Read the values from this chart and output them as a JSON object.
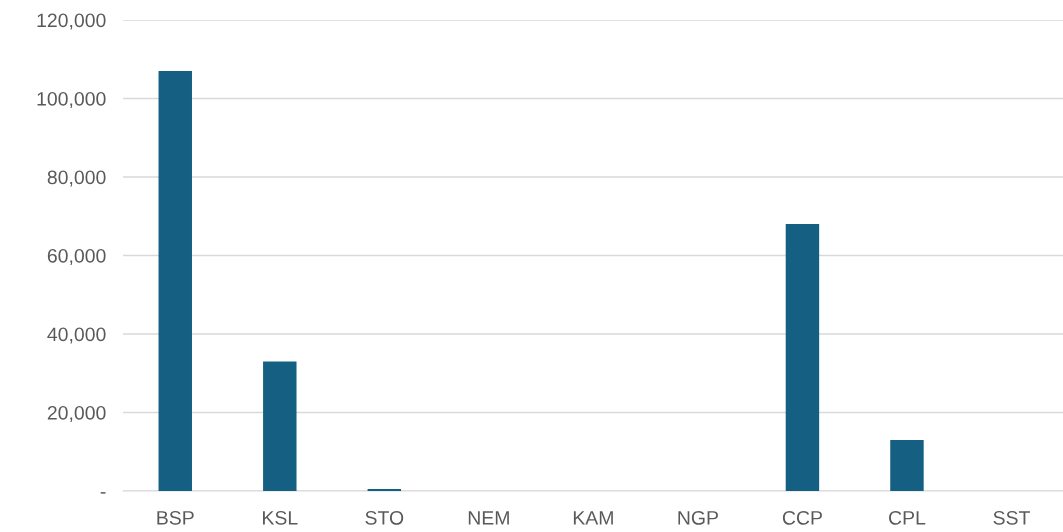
{
  "chart_data": {
    "type": "bar",
    "categories": [
      "BSP",
      "KSL",
      "STO",
      "NEM",
      "KAM",
      "NGP",
      "CCP",
      "CPL",
      "SST"
    ],
    "values": [
      107000,
      33000,
      500,
      0,
      0,
      0,
      68000,
      13000,
      0
    ],
    "color": "#156082",
    "ylim": [
      0,
      120000
    ],
    "yticks": [
      {
        "value": 0,
        "label": "-"
      },
      {
        "value": 20000,
        "label": "20,000"
      },
      {
        "value": 40000,
        "label": "40,000"
      },
      {
        "value": 60000,
        "label": "60,000"
      },
      {
        "value": 80000,
        "label": "80,000"
      },
      {
        "value": 100000,
        "label": "100,000"
      },
      {
        "value": 120000,
        "label": "120,000"
      }
    ],
    "grid": "y",
    "legend": false
  }
}
